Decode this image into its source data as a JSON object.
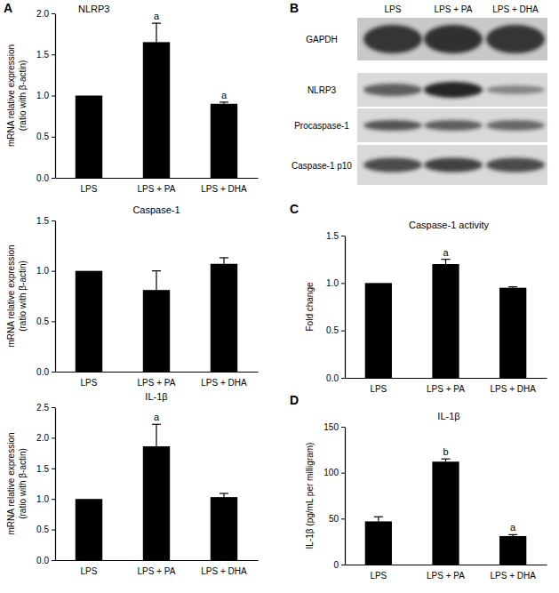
{
  "chart_data": [
    {
      "type": "bar",
      "panel": "A",
      "title": "NLRP3",
      "ylabel": [
        "mRNA relative expression",
        "(ratio with β-actin)"
      ],
      "categories": [
        "LPS",
        "LPS + PA",
        "LPS + DHA"
      ],
      "values": [
        1.0,
        1.65,
        0.9
      ],
      "errors": [
        0,
        0.23,
        0.02
      ],
      "annotations": [
        null,
        "a",
        "a"
      ],
      "color": "#000000",
      "ylim": [
        0,
        2.0
      ],
      "yticks": [
        {
          "value": 0,
          "label": "0.0"
        },
        {
          "value": 0.5,
          "label": "0.5"
        },
        {
          "value": 1.0,
          "label": "1.0"
        },
        {
          "value": 1.5,
          "label": "1.5"
        },
        {
          "value": 2.0,
          "label": "2.0"
        }
      ]
    },
    {
      "type": "bar",
      "title": "Caspase-1",
      "ylabel": [
        "mRNA relative expression",
        "(ratio with β-actin)"
      ],
      "categories": [
        "LPS",
        "LPS + PA",
        "LPS + DHA"
      ],
      "values": [
        1.0,
        0.81,
        1.07
      ],
      "errors": [
        0,
        0.19,
        0.06
      ],
      "color": "#000000",
      "ylim": [
        0,
        1.5
      ],
      "yticks": [
        {
          "value": 0,
          "label": "0.0"
        },
        {
          "value": 0.5,
          "label": "0.5"
        },
        {
          "value": 1.0,
          "label": "1.0"
        },
        {
          "value": 1.5,
          "label": "1.5"
        }
      ]
    },
    {
      "type": "bar",
      "title": "IL-1β",
      "ylabel": [
        "mRNA relative expression",
        "(ratio with β-actin)"
      ],
      "categories": [
        "LPS",
        "LPS + PA",
        "LPS + DHA"
      ],
      "values": [
        1.0,
        1.86,
        1.03
      ],
      "errors": [
        0,
        0.36,
        0.06
      ],
      "annotations": [
        null,
        "a",
        null
      ],
      "color": "#000000",
      "ylim": [
        0,
        2.5
      ],
      "yticks": [
        {
          "value": 0,
          "label": "0.0"
        },
        {
          "value": 0.5,
          "label": "0.5"
        },
        {
          "value": 1.0,
          "label": "1.0"
        },
        {
          "value": 1.5,
          "label": "1.5"
        },
        {
          "value": 2.0,
          "label": "2.0"
        },
        {
          "value": 2.5,
          "label": "2.5"
        }
      ]
    },
    {
      "type": "bar",
      "panel": "C",
      "title": "Caspase-1 activity",
      "ylabel": "Fold change",
      "categories": [
        "LPS",
        "LPS + PA",
        "LPS + DHA"
      ],
      "values": [
        1.0,
        1.2,
        0.95
      ],
      "errors": [
        0,
        0.05,
        0.01
      ],
      "annotations": [
        null,
        "a",
        null
      ],
      "color": "#000000",
      "ylim": [
        0,
        1.5
      ],
      "yticks": [
        {
          "value": 0,
          "label": "0.0"
        },
        {
          "value": 0.5,
          "label": "0.5"
        },
        {
          "value": 1.0,
          "label": "1.0"
        },
        {
          "value": 1.5,
          "label": "1.5"
        }
      ]
    },
    {
      "type": "bar",
      "panel": "D",
      "title": "IL-1β",
      "ylabel": "IL-1β (pg/mL per milligram)",
      "categories": [
        "LPS",
        "LPS + PA",
        "LPS + DHA"
      ],
      "values": [
        47,
        112,
        31
      ],
      "errors": [
        5,
        3,
        1.5
      ],
      "annotations": [
        null,
        "b",
        "a"
      ],
      "color": "#000000",
      "ylim": [
        0,
        150
      ],
      "yticks": [
        0,
        50,
        100,
        150
      ]
    }
  ],
  "blot": {
    "panel": "B",
    "lanes": [
      "LPS",
      "LPS + PA",
      "LPS + DHA"
    ],
    "rows": [
      "GAPDH",
      "NLRP3",
      "Procaspase-1",
      "Caspase-1 p10"
    ]
  }
}
